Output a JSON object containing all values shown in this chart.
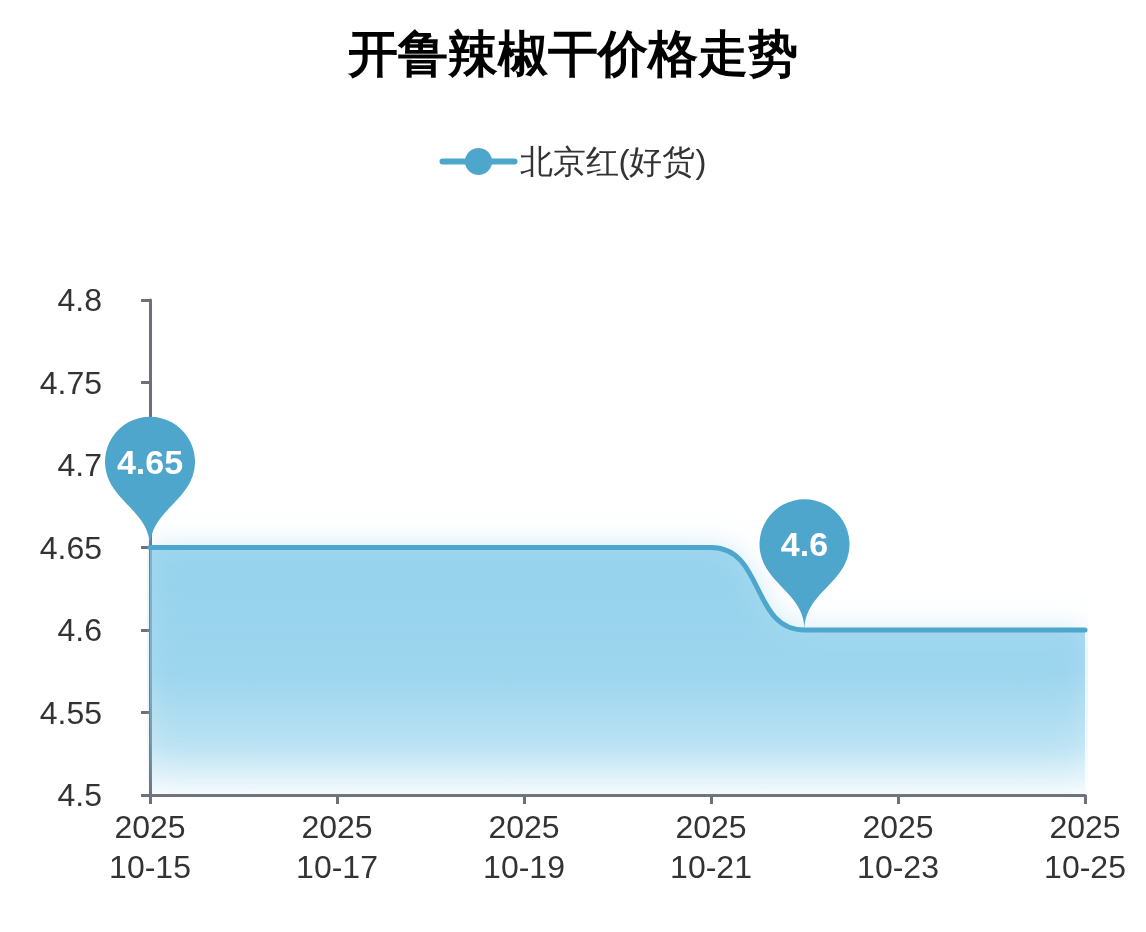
{
  "chart_data": {
    "type": "area",
    "title": "开鲁辣椒干价格走势",
    "categories": [
      "2025\n10-15",
      null,
      "2025\n10-17",
      null,
      "2025\n10-19",
      null,
      "2025\n10-21",
      null,
      "2025\n10-23",
      null,
      "2025\n10-25"
    ],
    "series": [
      {
        "name": "北京红(好货)",
        "color": "#4fa6cc",
        "values": [
          4.65,
          4.65,
          4.65,
          4.65,
          4.65,
          4.65,
          4.65,
          4.6,
          4.6,
          4.6,
          4.6
        ],
        "value_labels": [
          "4.65",
          null,
          null,
          null,
          null,
          null,
          null,
          "4.6",
          null,
          null,
          null
        ]
      }
    ],
    "ylim": [
      4.5,
      4.8
    ],
    "yticks": [
      4.5,
      4.55,
      4.6,
      4.65,
      4.7,
      4.75,
      4.8
    ],
    "legend": "top",
    "grid": false
  }
}
